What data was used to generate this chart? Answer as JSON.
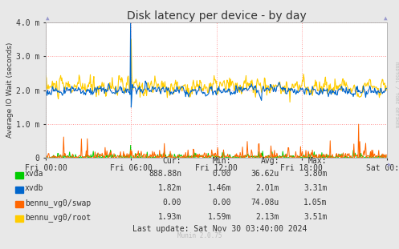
{
  "title": "Disk latency per device - by day",
  "ylabel": "Average IO Wait (seconds)",
  "background_color": "#e8e8e8",
  "plot_bg_color": "#ffffff",
  "grid_color": "#ff9999",
  "grid_style": ":",
  "ylim": [
    0.0,
    0.004
  ],
  "yticks": [
    0.0,
    0.001,
    0.002,
    0.003,
    0.004
  ],
  "ytick_labels": [
    "0",
    "1.0 m",
    "2.0 m",
    "3.0 m",
    "4.0 m"
  ],
  "num_points": 576,
  "series_colors": {
    "xvda": "#00cc00",
    "xvdb": "#0066cc",
    "bennu_vg0/swap": "#ff6600",
    "bennu_vg0/root": "#ffcc00"
  },
  "legend_items": [
    {
      "label": "xvda",
      "color": "#00cc00",
      "cur": "888.88n",
      "min": "0.00",
      "avg": "36.62u",
      "max": "3.80m"
    },
    {
      "label": "xvdb",
      "color": "#0066cc",
      "cur": "1.82m",
      "min": "1.46m",
      "avg": "2.01m",
      "max": "3.31m"
    },
    {
      "label": "bennu_vg0/swap",
      "color": "#ff6600",
      "cur": "0.00",
      "min": "0.00",
      "avg": "74.08u",
      "max": "1.05m"
    },
    {
      "label": "bennu_vg0/root",
      "color": "#ffcc00",
      "cur": "1.93m",
      "min": "1.59m",
      "avg": "2.13m",
      "max": "3.51m"
    }
  ],
  "xtick_labels": [
    "Fri 00:00",
    "Fri 06:00",
    "Fri 12:00",
    "Fri 18:00",
    "Sat 00:00"
  ],
  "footer": "Last update: Sat Nov 30 03:40:00 2024",
  "munin_label": "Munin 2.0.75",
  "rrdtool_label": "RRDTOOL / TOBI OETIKER",
  "title_fontsize": 10,
  "axis_fontsize": 7,
  "legend_fontsize": 7,
  "watermark_color": "#bbbbbb"
}
